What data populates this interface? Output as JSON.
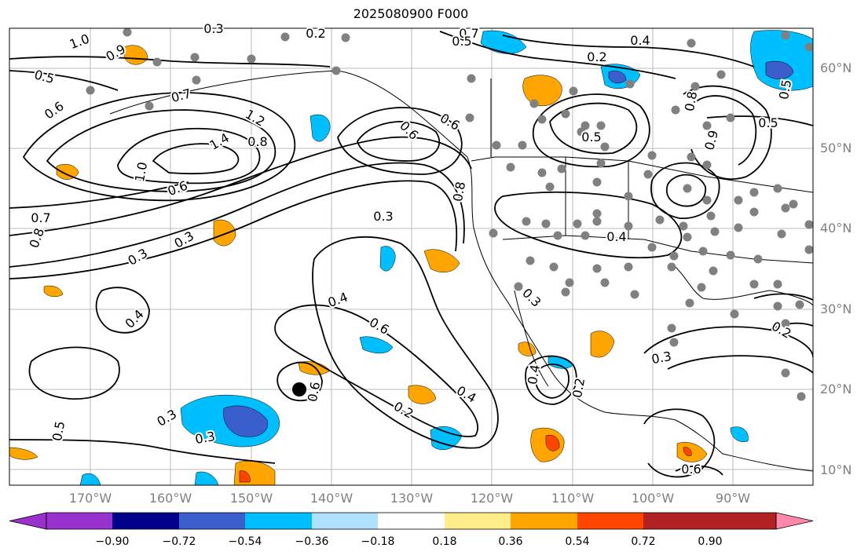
{
  "title": "2025080900 F000",
  "lat_labels": [
    "60°N",
    "50°N",
    "40°N",
    "30°N",
    "20°N",
    "10°N"
  ],
  "lon_labels": [
    "170°W",
    "160°W",
    "150°W",
    "140°W",
    "130°W",
    "120°W",
    "110°W",
    "100°W",
    "90°W"
  ],
  "colorbar": {
    "ticks": [
      "−0.90",
      "−0.72",
      "−0.54",
      "−0.36",
      "−0.18",
      "0.18",
      "0.36",
      "0.54",
      "0.72",
      "0.90"
    ],
    "colors": [
      "#9932cc",
      "#00008b",
      "#3a5fcd",
      "#00bfff",
      "#b0e2ff",
      "#ffffff",
      "#ffec8b",
      "#ffa500",
      "#ff4500",
      "#b22222",
      "#ff88aa"
    ]
  },
  "contour_labels": [
    "1.0",
    "0.5",
    "0.2",
    "0.7",
    "0.5",
    "0.3",
    "0.4",
    "0.2",
    "0.9",
    "0.6",
    "0.5",
    "0.6",
    "0.7",
    "1.2",
    "0.8",
    "1.4",
    "0.6",
    "0.9",
    "0.5",
    "0.8",
    "1.0",
    "0.5",
    "0.7",
    "0.8",
    "0.6",
    "0.3",
    "0.4",
    "0.3",
    "0.3",
    "0.8",
    "0.4",
    "0.3",
    "0.6",
    "0.4",
    "0.4",
    "0.3",
    "0.2",
    "0.4",
    "0.6",
    "0.2",
    "0.3",
    "0.3",
    "0.5",
    "0.6",
    "0.2"
  ],
  "colors": {
    "contour": "#000000",
    "grid": "#a9a9a9",
    "station": "#808080",
    "marker": "#000000",
    "label": "#808080"
  }
}
